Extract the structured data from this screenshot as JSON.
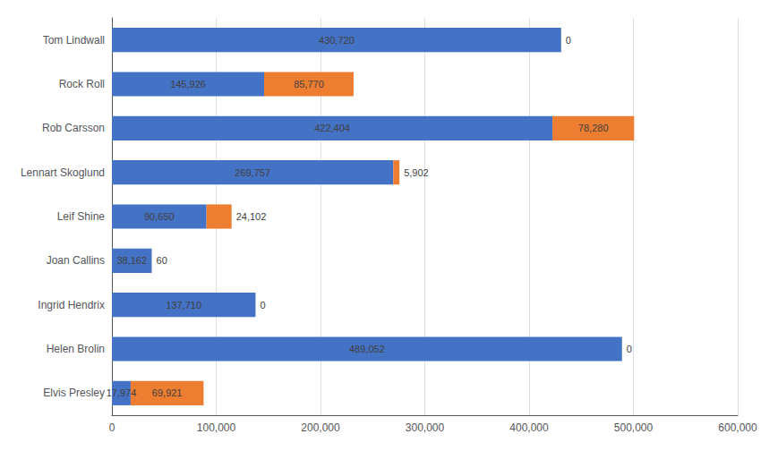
{
  "chart_data": {
    "type": "bar",
    "orientation": "horizontal",
    "stacked": true,
    "data_labels": true,
    "grid": true,
    "categories": [
      "Tom Lindwall",
      "Rock Roll",
      "Rob Carsson",
      "Lennart Skoglund",
      "Leif Shine",
      "Joan Callins",
      "Ingrid Hendrix",
      "Helen Brolin",
      "Elvis Presley"
    ],
    "series": [
      {
        "color": "#4472C4",
        "values": [
          430720,
          145926,
          422404,
          269757,
          90650,
          38162,
          137710,
          489052,
          17974
        ],
        "value_labels": [
          "430,720",
          "145,926",
          "422,404",
          "269,757",
          "90,650",
          "38,162",
          "137,710",
          "489,052",
          "17,974"
        ]
      },
      {
        "color": "#ED7D31",
        "values": [
          0,
          85770,
          78280,
          5902,
          24102,
          60,
          0,
          0,
          69921
        ],
        "value_labels": [
          "0",
          "85,770",
          "78,280",
          "5,902",
          "24,102",
          "60",
          "0",
          "0",
          "69,921"
        ]
      }
    ],
    "xlim": [
      0,
      600000
    ],
    "xticks": [
      {
        "value": 0,
        "label": "0"
      },
      {
        "value": 100000,
        "label": "100,000"
      },
      {
        "value": 200000,
        "label": "200,000"
      },
      {
        "value": 300000,
        "label": "300,000"
      },
      {
        "value": 400000,
        "label": "400,000"
      },
      {
        "value": 500000,
        "label": "500,000"
      },
      {
        "value": 600000,
        "label": "600,000"
      }
    ]
  }
}
